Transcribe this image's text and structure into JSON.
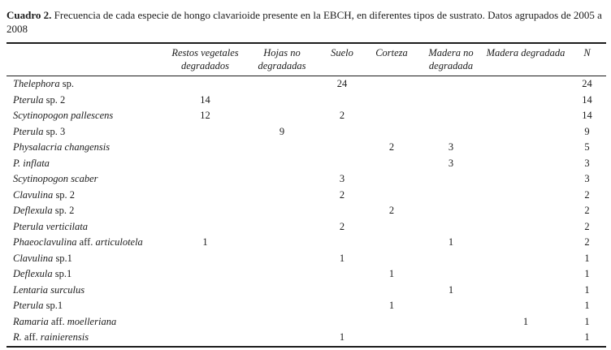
{
  "caption": {
    "label": "Cuadro 2.",
    "text": " Frecuencia de cada especie de hongo clavarioide presente en la EBCH, en diferentes tipos de sustrato. Datos agrupados de 2005 a 2008"
  },
  "table": {
    "columns": [
      "Restos vegetales degradados",
      "Hojas no degradadas",
      "Suelo",
      "Corteza",
      "Madera no degradada",
      "Madera degradada",
      "N"
    ],
    "rows": [
      {
        "name": [
          {
            "t": "Thelephora",
            "i": true
          },
          {
            "t": " sp.",
            "i": false
          }
        ],
        "values": [
          "",
          "",
          "24",
          "",
          "",
          "",
          "24"
        ]
      },
      {
        "name": [
          {
            "t": "Pterula",
            "i": true
          },
          {
            "t": " sp. 2",
            "i": false
          }
        ],
        "values": [
          "14",
          "",
          "",
          "",
          "",
          "",
          "14"
        ]
      },
      {
        "name": [
          {
            "t": "Scytinopogon pallescens",
            "i": true
          }
        ],
        "values": [
          "12",
          "",
          "2",
          "",
          "",
          "",
          "14"
        ]
      },
      {
        "name": [
          {
            "t": "Pterula",
            "i": true
          },
          {
            "t": " sp. 3",
            "i": false
          }
        ],
        "values": [
          "",
          "9",
          "",
          "",
          "",
          "",
          "9"
        ]
      },
      {
        "name": [
          {
            "t": "Physalacria changensis",
            "i": true
          }
        ],
        "values": [
          "",
          "",
          "",
          "2",
          "3",
          "",
          "5"
        ]
      },
      {
        "name": [
          {
            "t": "P. inflata",
            "i": true
          }
        ],
        "values": [
          "",
          "",
          "",
          "",
          "3",
          "",
          "3"
        ]
      },
      {
        "name": [
          {
            "t": "Scytinopogon scaber",
            "i": true
          }
        ],
        "values": [
          "",
          "",
          "3",
          "",
          "",
          "",
          "3"
        ]
      },
      {
        "name": [
          {
            "t": "Clavulina",
            "i": true
          },
          {
            "t": " sp. 2",
            "i": false
          }
        ],
        "values": [
          "",
          "",
          "2",
          "",
          "",
          "",
          "2"
        ]
      },
      {
        "name": [
          {
            "t": "Deflexula",
            "i": true
          },
          {
            "t": " sp. 2",
            "i": false
          }
        ],
        "values": [
          "",
          "",
          "",
          "2",
          "",
          "",
          "2"
        ]
      },
      {
        "name": [
          {
            "t": "Pterula verticilata",
            "i": true
          }
        ],
        "values": [
          "",
          "",
          "2",
          "",
          "",
          "",
          "2"
        ]
      },
      {
        "name": [
          {
            "t": "Phaeoclavulina",
            "i": true
          },
          {
            "t": " aff. ",
            "i": false
          },
          {
            "t": "articulotela",
            "i": true
          }
        ],
        "values": [
          "1",
          "",
          "",
          "",
          "1",
          "",
          "2"
        ]
      },
      {
        "name": [
          {
            "t": "Clavulina",
            "i": true
          },
          {
            "t": " sp.1",
            "i": false
          }
        ],
        "values": [
          "",
          "",
          "1",
          "",
          "",
          "",
          "1"
        ]
      },
      {
        "name": [
          {
            "t": "Deflexula",
            "i": true
          },
          {
            "t": " sp.1",
            "i": false
          }
        ],
        "values": [
          "",
          "",
          "",
          "1",
          "",
          "",
          "1"
        ]
      },
      {
        "name": [
          {
            "t": "Lentaria surculus",
            "i": true
          }
        ],
        "values": [
          "",
          "",
          "",
          "",
          "1",
          "",
          "1"
        ]
      },
      {
        "name": [
          {
            "t": "Pterula",
            "i": true
          },
          {
            "t": " sp.1",
            "i": false
          }
        ],
        "values": [
          "",
          "",
          "",
          "1",
          "",
          "",
          "1"
        ]
      },
      {
        "name": [
          {
            "t": "Ramaria",
            "i": true
          },
          {
            "t": " aff. ",
            "i": false
          },
          {
            "t": "moelleriana",
            "i": true
          }
        ],
        "values": [
          "",
          "",
          "",
          "",
          "",
          "1",
          "1"
        ]
      },
      {
        "name": [
          {
            "t": "R.",
            "i": true
          },
          {
            "t": " aff. ",
            "i": false
          },
          {
            "t": "rainierensis",
            "i": true
          }
        ],
        "values": [
          "",
          "",
          "1",
          "",
          "",
          "",
          "1"
        ]
      }
    ]
  }
}
